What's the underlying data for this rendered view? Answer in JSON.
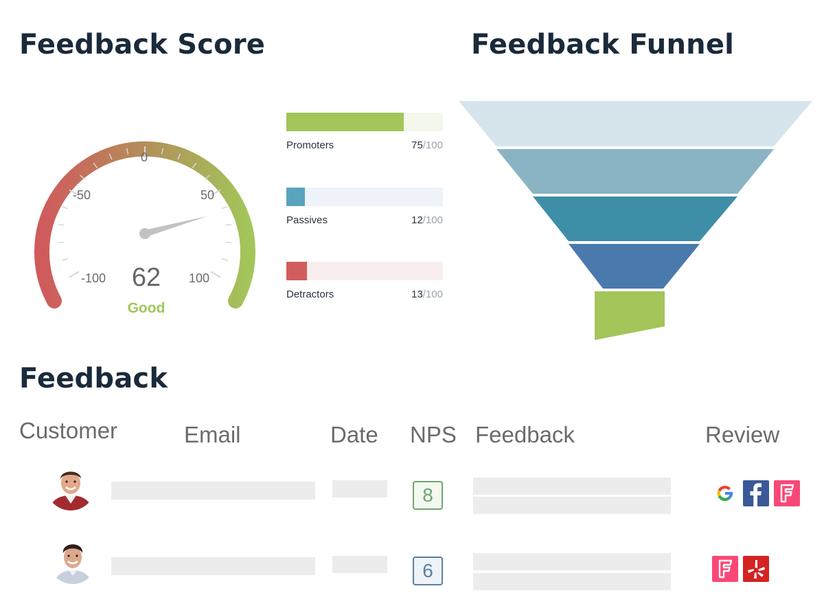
{
  "score_section": {
    "title": "Feedback Score",
    "gauge": {
      "value": "62",
      "rating": "Good",
      "min": -100,
      "max": 100,
      "ticks": [
        "-100",
        "-50",
        "0",
        "50",
        "100"
      ]
    },
    "bars": [
      {
        "label": "Promoters",
        "value": "75",
        "total": "/100",
        "fraction": 0.75,
        "color": "#a3c55a",
        "track_color": "#f3f7ec"
      },
      {
        "label": "Passives",
        "value": "12",
        "total": "/100",
        "fraction": 0.12,
        "color": "#5aa3bd",
        "track_color": "#edf3f8"
      },
      {
        "label": "Detractors",
        "value": "13",
        "total": "/100",
        "fraction": 0.13,
        "color": "#d05e5c",
        "track_color": "#f8eeee"
      }
    ]
  },
  "funnel_section": {
    "title": "Feedback Funnel",
    "stage_colors": [
      "#d6e4ec",
      "#8ab4c3",
      "#3f8ea8",
      "#4a79ad",
      "#a3c55a"
    ]
  },
  "feedback_section": {
    "title": "Feedback",
    "columns": [
      "Customer",
      "Email",
      "Date",
      "NPS",
      "Feedback",
      "Review"
    ],
    "rows": [
      {
        "nps": "8",
        "nps_color": "#6fa66f",
        "nps_bg": "#f3f8f0",
        "reviews": [
          "google-icon",
          "facebook-icon",
          "foursquare-icon"
        ]
      },
      {
        "nps": "6",
        "nps_color": "#5b7fa3",
        "nps_bg": "#eef3f8",
        "reviews": [
          "foursquare-icon",
          "yelp-icon"
        ]
      }
    ]
  }
}
